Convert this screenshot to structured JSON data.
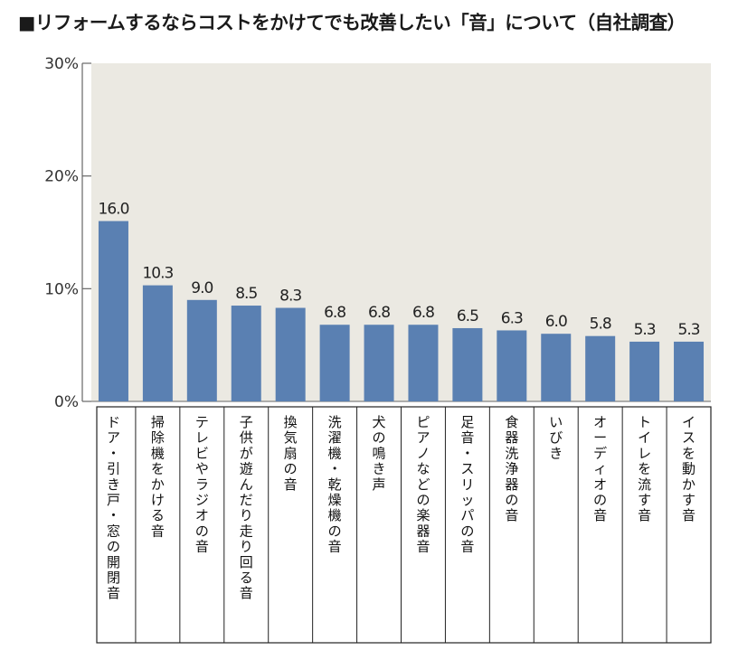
{
  "title": "■リフォームするならコストをかけてでも改善したい「音」について（自社調査）",
  "chart_data": {
    "type": "bar",
    "categories": [
      "ドア・引き戸・窓の開閉音",
      "掃除機をかける音",
      "テレビやラジオの音",
      "子供が遊んだり走り回る音",
      "換気扇の音",
      "洗濯機・乾燥機の音",
      "犬の鳴き声",
      "ピアノなどの楽器音",
      "足音・スリッパの音",
      "食器洗浄器の音",
      "いびき",
      "オーディオの音",
      "トイレを流す音",
      "イスを動かす音"
    ],
    "values": [
      16.0,
      10.3,
      9.0,
      8.5,
      8.3,
      6.8,
      6.8,
      6.8,
      6.5,
      6.3,
      6.0,
      5.8,
      5.3,
      5.3
    ],
    "value_labels": [
      "16.0",
      "10.3",
      "9.0",
      "8.5",
      "8.3",
      "6.8",
      "6.8",
      "6.8",
      "6.5",
      "6.3",
      "6.0",
      "5.8",
      "5.3",
      "5.3"
    ],
    "yticks": [
      "0%",
      "10%",
      "20%",
      "30%"
    ],
    "ylim": [
      0,
      30
    ],
    "bar_color": "#5a80b2",
    "plot_bg": "#ebe9e2",
    "grid": false
  }
}
